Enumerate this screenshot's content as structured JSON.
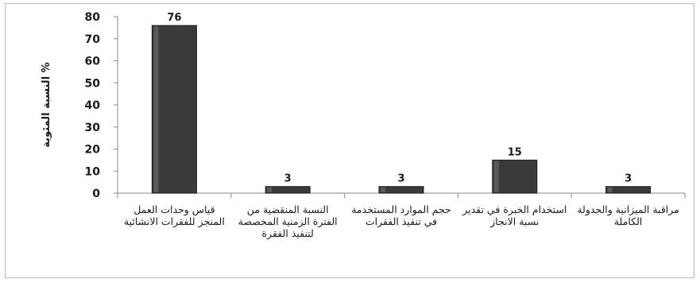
{
  "chart_data": {
    "type": "bar",
    "categories": [
      "قياس وحدات العمل المنجز للفقرات الانشائية",
      "النسبة المنقضية من الفترة الزمنية المخصصة لتنفيذ الفقرة",
      "حجم الموارد المستخدمة في تنفيذ الفقرات",
      "استخدام الخبرة في تقدير نسبة الانجاز",
      "مراقبة الميزانية والجدولة الكاملة"
    ],
    "values": [
      76,
      3,
      3,
      15,
      3
    ],
    "title": "",
    "xlabel": "",
    "ylabel": "النسبة المئوية %",
    "ylim": [
      0,
      80
    ],
    "yticks": [
      0,
      10,
      20,
      30,
      40,
      50,
      60,
      70,
      80
    ],
    "grid": false,
    "legend": "none",
    "bar_color": "#3a3a3a"
  }
}
